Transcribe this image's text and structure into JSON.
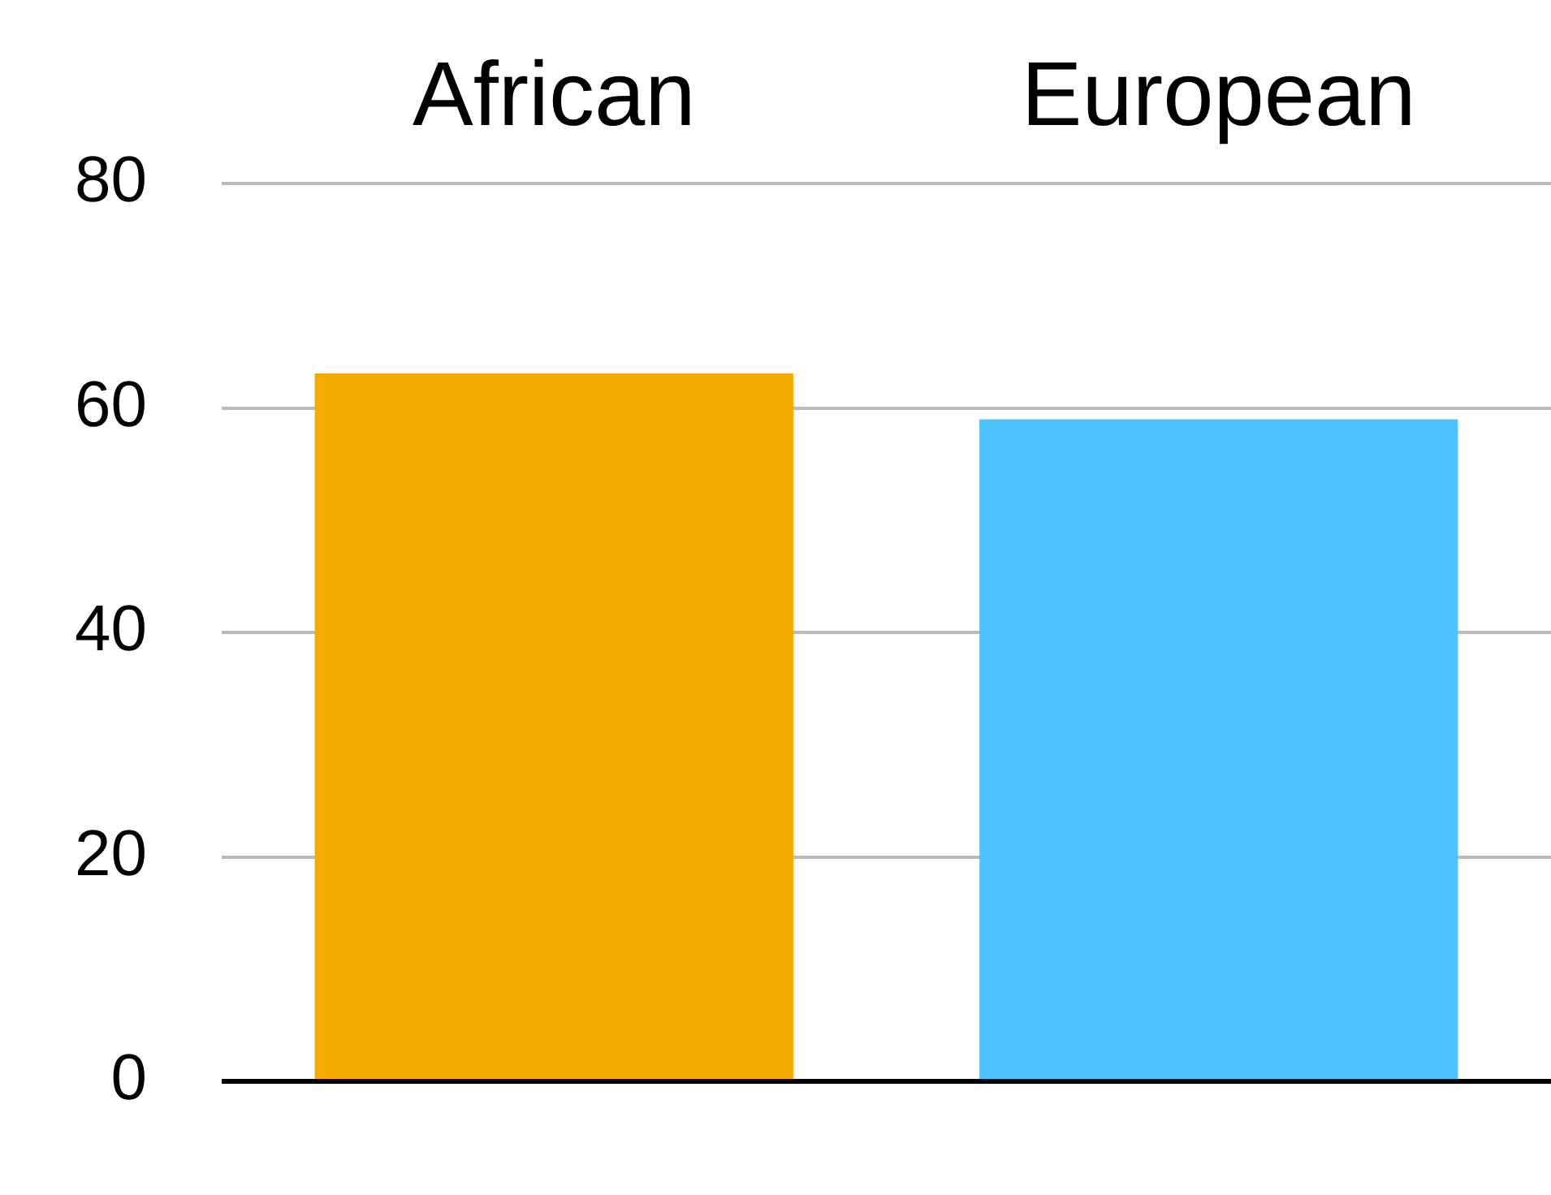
{
  "chart_data": {
    "type": "bar",
    "categories": [
      "African",
      "European"
    ],
    "values": [
      63.1,
      59.0
    ],
    "colors": [
      "#f5aa00",
      "#4fc3fe"
    ],
    "ylim": [
      0,
      80
    ],
    "yticks": [
      0,
      20,
      40,
      60,
      80
    ],
    "grid": "y",
    "legend": false
  }
}
